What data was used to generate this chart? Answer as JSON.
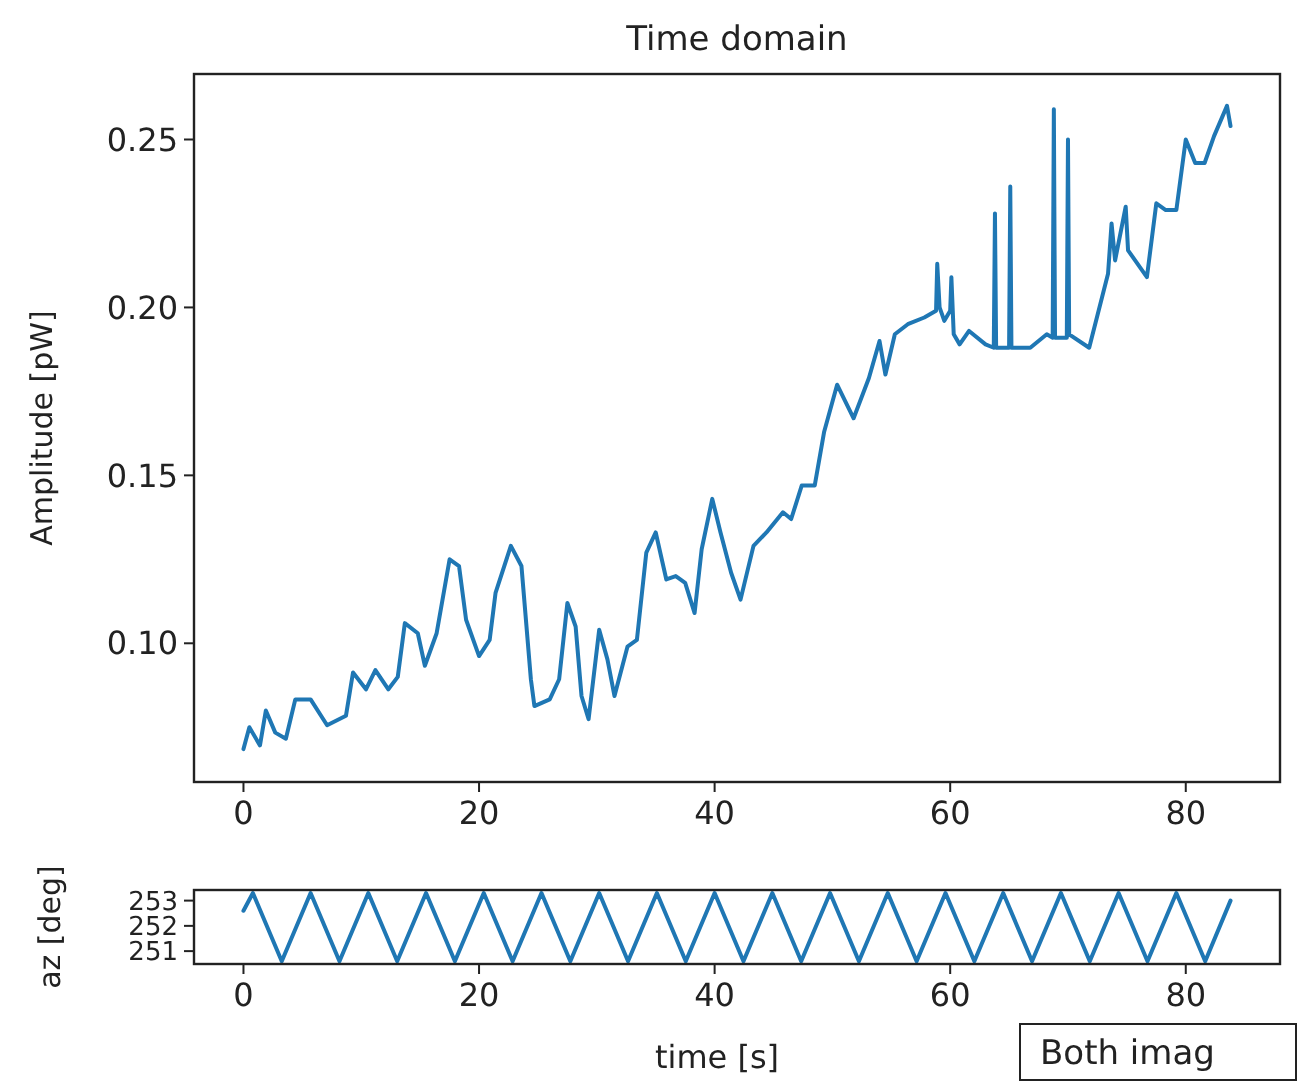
{
  "chart_data": [
    {
      "type": "line",
      "title": "Time domain",
      "ylabel": "Amplitude [pW]",
      "xlim": [
        -4.2,
        88
      ],
      "ylim": [
        0.0587,
        0.2695
      ],
      "xticks": [
        0,
        20,
        40,
        60,
        80
      ],
      "yticks": [
        {
          "value": 0.1,
          "label": "0.10"
        },
        {
          "value": 0.15,
          "label": "0.15"
        },
        {
          "value": 0.2,
          "label": "0.20"
        },
        {
          "value": 0.25,
          "label": "0.25"
        }
      ],
      "grid": false,
      "series": [
        {
          "color": "#1f77b4",
          "x": [
            0,
            0.5,
            1.4,
            1.9,
            2.7,
            3.6,
            4.4,
            5.7,
            7.1,
            8.7,
            9.3,
            10.4,
            11.2,
            12.3,
            13.1,
            13.7,
            14.8,
            15.4,
            16.4,
            17.5,
            18.3,
            18.9,
            20,
            20.9,
            21.4,
            22.7,
            23.6,
            24.4,
            24.7,
            26,
            26.8,
            27.5,
            28.2,
            28.7,
            29.3,
            30.2,
            30.9,
            31.5,
            32.6,
            33.4,
            34.2,
            35,
            35.9,
            36.7,
            37.5,
            38.3,
            38.9,
            39.8,
            40.5,
            41.4,
            42.2,
            43.3,
            44.4,
            45.8,
            46.5,
            47.4,
            48.5,
            49.3,
            50.4,
            51.8,
            53.1,
            54,
            54.5,
            55.3,
            56.4,
            57.8,
            58.8,
            58.9,
            59.1,
            59.5,
            60,
            60.1,
            60.3,
            60.8,
            61.6,
            63,
            63.7,
            63.8,
            63.9,
            65,
            65.1,
            65.2,
            66.8,
            68.2,
            68.7,
            68.8,
            68.9,
            69.9,
            70,
            70.1,
            71.8,
            73.4,
            73.7,
            74,
            74.9,
            75.1,
            76.7,
            77.5,
            78.3,
            79.2,
            80,
            80.8,
            81.6,
            82.4,
            83.5,
            83.8
          ],
          "values": [
            0.0685,
            0.075,
            0.0696,
            0.08,
            0.0734,
            0.0716,
            0.0833,
            0.0833,
            0.0756,
            0.0784,
            0.0913,
            0.0863,
            0.092,
            0.0863,
            0.09,
            0.106,
            0.103,
            0.0933,
            0.103,
            0.125,
            0.123,
            0.107,
            0.0962,
            0.101,
            0.115,
            0.129,
            0.123,
            0.0893,
            0.0813,
            0.0833,
            0.0893,
            0.112,
            0.105,
            0.0843,
            0.0774,
            0.104,
            0.0952,
            0.0843,
            0.099,
            0.101,
            0.127,
            0.133,
            0.119,
            0.12,
            0.118,
            0.109,
            0.128,
            0.143,
            0.133,
            0.121,
            0.113,
            0.129,
            0.133,
            0.139,
            0.137,
            0.147,
            0.147,
            0.163,
            0.177,
            0.167,
            0.179,
            0.19,
            0.18,
            0.192,
            0.195,
            0.197,
            0.199,
            0.213,
            0.2,
            0.196,
            0.199,
            0.209,
            0.192,
            0.189,
            0.193,
            0.189,
            0.188,
            0.228,
            0.188,
            0.188,
            0.236,
            0.188,
            0.188,
            0.192,
            0.191,
            0.259,
            0.191,
            0.191,
            0.25,
            0.192,
            0.188,
            0.21,
            0.225,
            0.214,
            0.23,
            0.217,
            0.209,
            0.231,
            0.229,
            0.229,
            0.25,
            0.243,
            0.243,
            0.251,
            0.26,
            0.254
          ]
        }
      ]
    },
    {
      "type": "line",
      "xlabel": "time [s]",
      "ylabel": "az [deg]",
      "xlim": [
        -4.2,
        88
      ],
      "ylim": [
        250.49,
        253.42
      ],
      "xticks": [
        0,
        20,
        40,
        60,
        80
      ],
      "yticks": [
        251,
        252,
        253
      ],
      "grid": false,
      "annotations": [
        "Both imag"
      ],
      "series": [
        {
          "color": "#1f77b4",
          "x": [
            0,
            0.8,
            3.25,
            5.7,
            8.15,
            10.6,
            13.05,
            15.5,
            17.95,
            20.4,
            22.85,
            25.3,
            27.75,
            30.2,
            32.65,
            35.1,
            37.55,
            40,
            42.45,
            44.9,
            47.35,
            49.8,
            52.25,
            54.7,
            57.15,
            59.6,
            62.05,
            64.5,
            66.95,
            69.4,
            71.85,
            74.3,
            76.75,
            79.2,
            81.65,
            83.8
          ],
          "values": [
            252.6,
            253.3,
            250.6,
            253.3,
            250.6,
            253.3,
            250.6,
            253.3,
            250.6,
            253.3,
            250.6,
            253.3,
            250.6,
            253.3,
            250.6,
            253.3,
            250.6,
            253.3,
            250.6,
            253.3,
            250.6,
            253.3,
            250.6,
            253.3,
            250.6,
            253.3,
            250.6,
            253.3,
            250.6,
            253.3,
            250.6,
            253.3,
            250.6,
            253.3,
            250.6,
            253
          ]
        }
      ]
    }
  ]
}
